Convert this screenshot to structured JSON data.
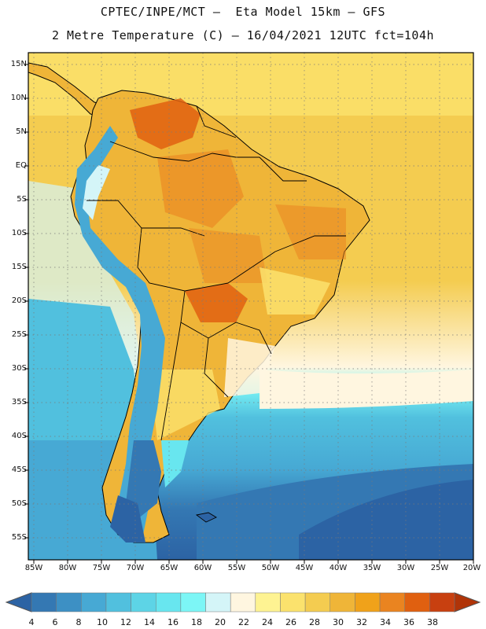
{
  "header": {
    "line1": "CPTEC/INPE/MCT –  Eta Model 15km – GFS",
    "line2": "2 Metre Temperature (C) – 16/04/2021 12UTC fct=104h"
  },
  "map": {
    "lat_labels": [
      "15N",
      "10N",
      "5N",
      "EQ",
      "5S",
      "10S",
      "15S",
      "20S",
      "25S",
      "30S",
      "35S",
      "40S",
      "45S",
      "50S",
      "55S"
    ],
    "lon_labels": [
      "85W",
      "80W",
      "75W",
      "70W",
      "65W",
      "60W",
      "55W",
      "50W",
      "45W",
      "40W",
      "35W",
      "30W",
      "25W",
      "20W"
    ]
  },
  "colorbar": {
    "labels": [
      "4",
      "6",
      "8",
      "10",
      "12",
      "14",
      "16",
      "18",
      "20",
      "22",
      "24",
      "26",
      "28",
      "30",
      "32",
      "34",
      "36",
      "38"
    ],
    "colors": [
      "#2c63a4",
      "#3478b3",
      "#3d90c4",
      "#47a9d4",
      "#51c0de",
      "#5dd4e6",
      "#68e6ef",
      "#7cf6f6",
      "#d4f5f8",
      "#fff6e0",
      "#fef392",
      "#fbe26d",
      "#f4cc50",
      "#efb538",
      "#f0a21a",
      "#ea8420",
      "#e06010",
      "#c84010",
      "#b03408"
    ],
    "colors_note": "first and last colors are the open-ended triangle ends"
  },
  "palette": {
    "land_base": "#efb538",
    "ocean_south": "#2c63a4",
    "ocean_tropical": "#f4cc50",
    "coast_line": "#000000",
    "grid_line": "#7a7a7a"
  }
}
